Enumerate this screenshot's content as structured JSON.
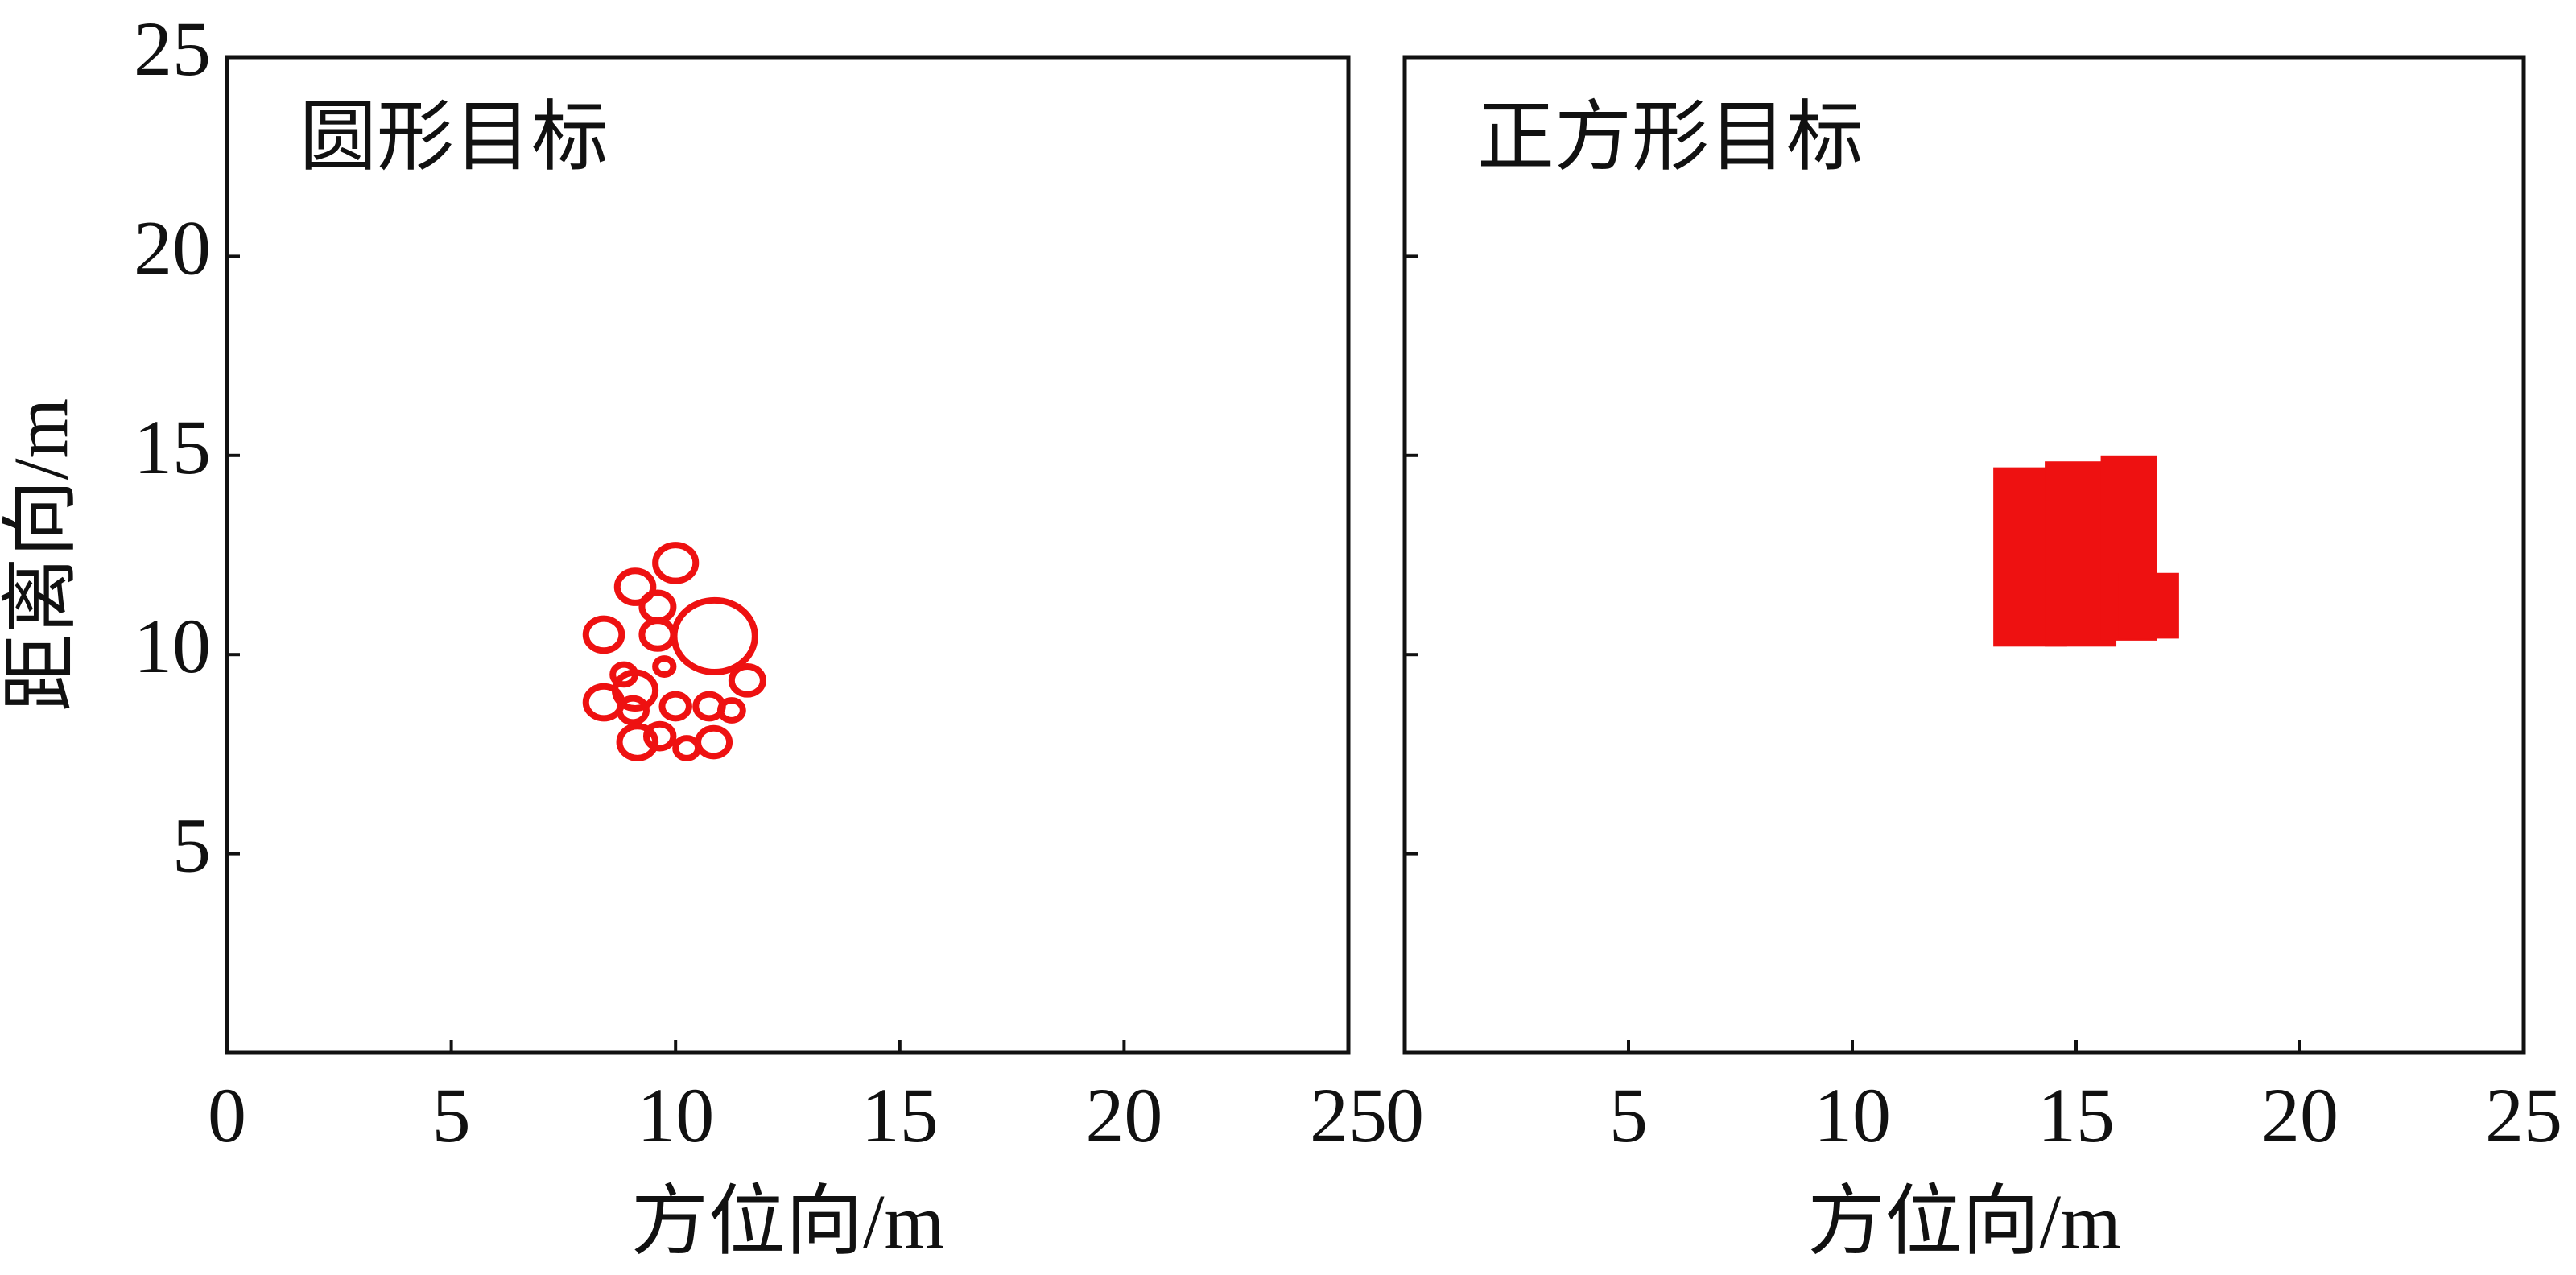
{
  "chart_data": [
    {
      "type": "circles",
      "title": "圆形目标",
      "xlabel": "方位向/m",
      "ylabel": "距离向/m",
      "xlim": [
        0,
        25
      ],
      "ylim": [
        0,
        25
      ],
      "xticks": [
        0,
        5,
        10,
        15,
        20,
        25
      ],
      "yticks": [
        5,
        10,
        15,
        20,
        25
      ],
      "ytick_labels": true,
      "color": "#ee1111",
      "x": [
        10.87,
        10.0,
        9.1,
        9.6,
        8.4,
        9.6,
        11.6,
        8.85,
        9.75,
        8.4,
        9.1,
        9.05,
        10.0,
        10.75,
        11.25,
        9.15,
        9.65,
        10.25,
        10.85
      ],
      "y": [
        10.46,
        12.3,
        11.7,
        11.2,
        10.5,
        10.5,
        9.35,
        9.5,
        9.7,
        8.8,
        9.1,
        8.6,
        8.7,
        8.7,
        8.6,
        7.8,
        7.95,
        7.65,
        7.8
      ],
      "size": [
        0.9,
        0.45,
        0.4,
        0.35,
        0.4,
        0.35,
        0.35,
        0.25,
        0.2,
        0.4,
        0.45,
        0.3,
        0.3,
        0.3,
        0.25,
        0.4,
        0.3,
        0.25,
        0.35
      ]
    },
    {
      "type": "rects",
      "title": "正方形目标",
      "xlabel": "方位向/m",
      "xlim": [
        0,
        25
      ],
      "ylim": [
        0,
        25
      ],
      "xticks": [
        0,
        5,
        10,
        15,
        20,
        25
      ],
      "yticks": [
        5,
        10,
        15,
        20
      ],
      "ytick_labels": false,
      "color": "#ee1111",
      "x": [
        13.15,
        14.3,
        15.55,
        15.95
      ],
      "y": [
        10.2,
        10.2,
        10.35,
        10.4
      ],
      "width": [
        1.65,
        1.6,
        1.25,
        1.35
      ],
      "height": [
        4.5,
        4.65,
        4.65,
        1.65
      ]
    }
  ]
}
